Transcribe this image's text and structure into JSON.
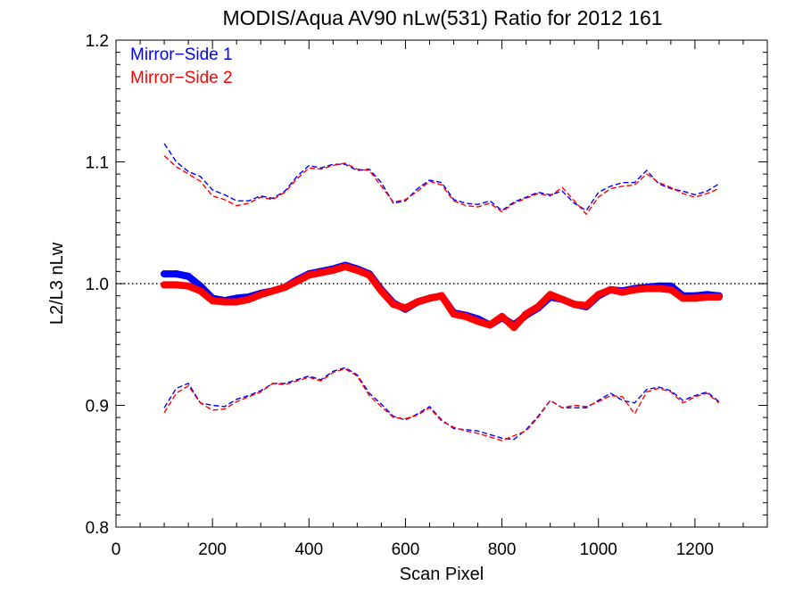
{
  "chart_data": {
    "type": "line",
    "title": "MODIS/Aqua AV90 nLw(531) Ratio for 2012 161",
    "xlabel": "Scan Pixel",
    "ylabel": "L2/L3 nLw",
    "xlim": [
      0,
      1350
    ],
    "ylim": [
      0.8,
      1.2
    ],
    "xticks": [
      0,
      200,
      400,
      600,
      800,
      1000,
      1200
    ],
    "xtick_labels": [
      "0",
      "200",
      "400",
      "600",
      "800",
      "1000",
      "1200"
    ],
    "yticks": [
      0.8,
      0.9,
      1.0,
      1.1,
      1.2
    ],
    "ytick_labels": [
      "0.8",
      "0.9",
      "1.0",
      "1.1",
      "1.2"
    ],
    "reference_line": 1.0,
    "legend": {
      "placement": "top-left",
      "entries": [
        "Mirror−Side 1",
        "Mirror−Side 2"
      ]
    },
    "colors": {
      "ms1": "#0000ff",
      "ms2": "#ff0000",
      "axis": "#000000"
    },
    "series": [
      {
        "name": "Mirror−Side 1",
        "color": "#0000ff",
        "x": [
          100,
          125,
          150,
          175,
          200,
          225,
          250,
          275,
          300,
          325,
          350,
          375,
          400,
          425,
          450,
          475,
          500,
          525,
          550,
          575,
          600,
          625,
          650,
          675,
          700,
          725,
          750,
          775,
          800,
          825,
          850,
          875,
          900,
          925,
          950,
          975,
          1000,
          1025,
          1050,
          1075,
          1100,
          1125,
          1150,
          1175,
          1200,
          1225,
          1250
        ],
        "median": [
          1.008,
          1.008,
          1.006,
          0.998,
          0.988,
          0.986,
          0.988,
          0.989,
          0.992,
          0.994,
          0.997,
          1.003,
          1.008,
          1.01,
          1.012,
          1.015,
          1.012,
          1.008,
          0.995,
          0.984,
          0.979,
          0.985,
          0.988,
          0.99,
          0.976,
          0.974,
          0.971,
          0.966,
          0.972,
          0.966,
          0.974,
          0.98,
          0.989,
          0.987,
          0.983,
          0.981,
          0.99,
          0.995,
          0.994,
          0.996,
          0.997,
          0.998,
          0.998,
          0.99,
          0.99,
          0.991,
          0.99
        ],
        "upper": [
          1.115,
          1.1,
          1.092,
          1.088,
          1.077,
          1.073,
          1.068,
          1.068,
          1.072,
          1.07,
          1.076,
          1.088,
          1.097,
          1.095,
          1.098,
          1.098,
          1.093,
          1.094,
          1.083,
          1.066,
          1.068,
          1.078,
          1.085,
          1.083,
          1.069,
          1.066,
          1.065,
          1.068,
          1.06,
          1.067,
          1.071,
          1.075,
          1.073,
          1.076,
          1.066,
          1.06,
          1.075,
          1.08,
          1.083,
          1.083,
          1.093,
          1.082,
          1.078,
          1.076,
          1.073,
          1.076,
          1.082
        ],
        "lower": [
          0.898,
          0.914,
          0.918,
          0.902,
          0.9,
          0.899,
          0.905,
          0.908,
          0.912,
          0.918,
          0.918,
          0.921,
          0.924,
          0.921,
          0.928,
          0.931,
          0.925,
          0.91,
          0.901,
          0.891,
          0.888,
          0.893,
          0.899,
          0.888,
          0.881,
          0.88,
          0.879,
          0.876,
          0.873,
          0.872,
          0.88,
          0.891,
          0.904,
          0.898,
          0.898,
          0.898,
          0.904,
          0.91,
          0.904,
          0.902,
          0.913,
          0.915,
          0.912,
          0.904,
          0.908,
          0.911,
          0.903
        ]
      },
      {
        "name": "Mirror−Side 2",
        "color": "#ff0000",
        "x": [
          100,
          125,
          150,
          175,
          200,
          225,
          250,
          275,
          300,
          325,
          350,
          375,
          400,
          425,
          450,
          475,
          500,
          525,
          550,
          575,
          600,
          625,
          650,
          675,
          700,
          725,
          750,
          775,
          800,
          825,
          850,
          875,
          900,
          925,
          950,
          975,
          1000,
          1025,
          1050,
          1075,
          1100,
          1125,
          1150,
          1175,
          1200,
          1225,
          1250
        ],
        "median": [
          0.999,
          0.999,
          0.998,
          0.994,
          0.986,
          0.985,
          0.985,
          0.987,
          0.991,
          0.994,
          0.997,
          1.002,
          1.007,
          1.009,
          1.011,
          1.014,
          1.011,
          1.007,
          0.994,
          0.983,
          0.98,
          0.985,
          0.988,
          0.99,
          0.975,
          0.973,
          0.969,
          0.966,
          0.973,
          0.964,
          0.975,
          0.981,
          0.991,
          0.987,
          0.983,
          0.982,
          0.991,
          0.995,
          0.993,
          0.995,
          0.996,
          0.996,
          0.995,
          0.988,
          0.988,
          0.989,
          0.989
        ],
        "upper": [
          1.105,
          1.096,
          1.09,
          1.084,
          1.072,
          1.069,
          1.064,
          1.066,
          1.071,
          1.069,
          1.075,
          1.086,
          1.095,
          1.094,
          1.097,
          1.099,
          1.094,
          1.093,
          1.08,
          1.067,
          1.069,
          1.076,
          1.084,
          1.081,
          1.068,
          1.064,
          1.063,
          1.066,
          1.059,
          1.066,
          1.07,
          1.074,
          1.072,
          1.079,
          1.068,
          1.057,
          1.071,
          1.078,
          1.08,
          1.081,
          1.09,
          1.083,
          1.079,
          1.074,
          1.071,
          1.074,
          1.078
        ],
        "lower": [
          0.894,
          0.91,
          0.916,
          0.902,
          0.896,
          0.897,
          0.903,
          0.907,
          0.911,
          0.918,
          0.917,
          0.92,
          0.923,
          0.92,
          0.927,
          0.93,
          0.924,
          0.908,
          0.899,
          0.89,
          0.889,
          0.892,
          0.898,
          0.887,
          0.882,
          0.879,
          0.877,
          0.874,
          0.871,
          0.875,
          0.879,
          0.89,
          0.904,
          0.898,
          0.9,
          0.899,
          0.903,
          0.908,
          0.907,
          0.893,
          0.911,
          0.914,
          0.911,
          0.902,
          0.907,
          0.91,
          0.902
        ]
      }
    ]
  }
}
